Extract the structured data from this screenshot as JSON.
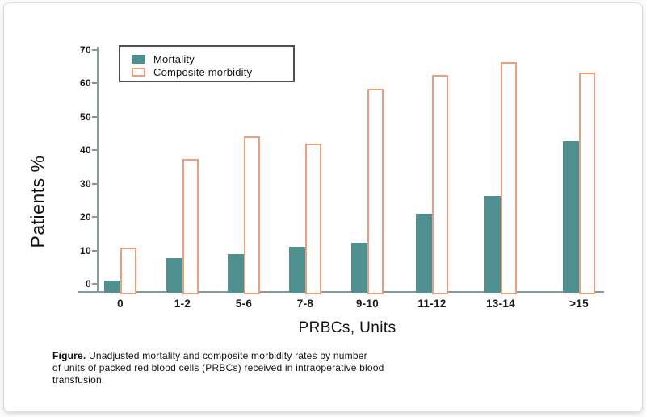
{
  "figure": {
    "caption_label": "Figure.",
    "caption_lines": [
      "Unadjusted mortality and composite morbidity rates by number",
      "of units of packed red blood cells (PRBCs) received in intraoperative blood",
      "transfusion."
    ]
  },
  "chart_data": {
    "type": "bar",
    "title": "",
    "categories": [
      "0",
      "1-2",
      "5-6",
      "7-8",
      "9-10",
      "11-12",
      "13-14",
      ">15"
    ],
    "series": [
      {
        "name": "Mortality",
        "style": "filled",
        "color": "#4f9190",
        "values": [
          1,
          7.7,
          9,
          11.2,
          12.2,
          21,
          26.4,
          42.7
        ]
      },
      {
        "name": "Composite morbidity",
        "style": "outlined",
        "color": "#f09d79",
        "values": [
          10.8,
          37.5,
          44.2,
          42,
          58.5,
          62.5,
          66.3,
          63.2
        ]
      }
    ],
    "xlabel": "PRBCs, Units",
    "ylabel": "Patients %",
    "ylim": [
      0,
      70
    ],
    "ytick_step": 10,
    "grid": false,
    "legend_position": "top-left"
  },
  "colors": {
    "bar_teal": "#4f9190",
    "bar_orange_outline": "#f09d79",
    "axis": "#7f9d9c",
    "text": "#1a1a1a",
    "legend_border": "#4f4f4f",
    "card_border": "#dcdcdc"
  }
}
